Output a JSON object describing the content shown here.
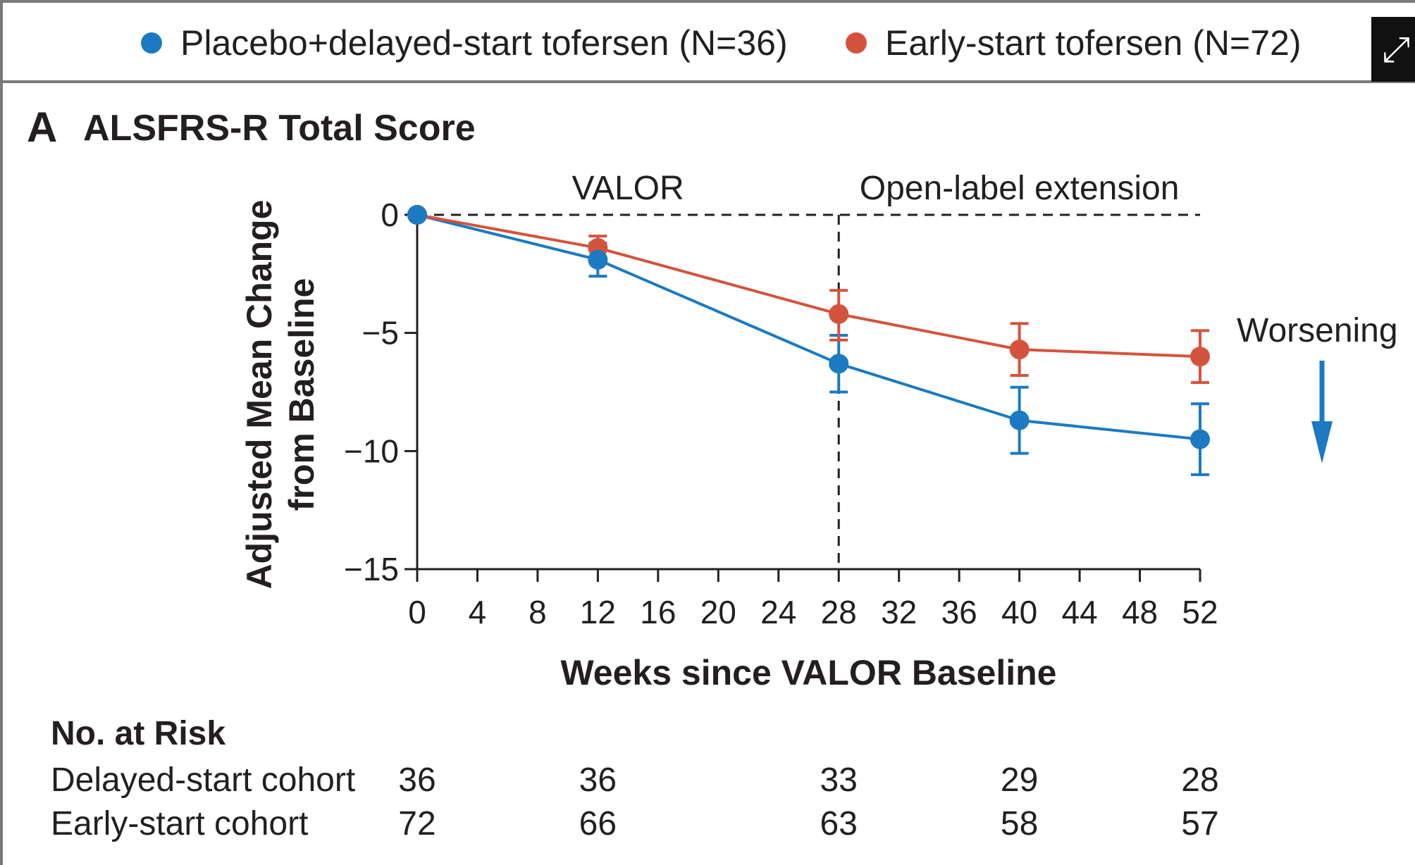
{
  "legend": {
    "placebo_label": "Placebo+delayed-start tofersen (N=36)",
    "early_label": "Early-start tofersen (N=72)"
  },
  "colors": {
    "placebo": "#1b7ac2",
    "early": "#d4533d"
  },
  "expand_icon": "expand-arrows-icon",
  "panel": {
    "letter": "A",
    "title": "ALSFRS-R Total Score"
  },
  "chart_data": {
    "type": "line",
    "title": "ALSFRS-R Total Score",
    "xlabel": "Weeks since VALOR Baseline",
    "ylabel": "Adjusted Mean Change from Baseline",
    "ylabel_lines": [
      "Adjusted Mean Change",
      "from Baseline"
    ],
    "xlim": [
      0,
      52
    ],
    "ylim": [
      -15,
      0
    ],
    "x_ticks": [
      0,
      4,
      8,
      12,
      16,
      20,
      24,
      28,
      32,
      36,
      40,
      44,
      48,
      52
    ],
    "y_ticks": [
      0,
      -5,
      -10,
      -15
    ],
    "y_tick_labels": [
      "0",
      "−5",
      "−10",
      "−15"
    ],
    "grid": false,
    "legend_position": "top",
    "reference_line_y": 0,
    "phase_divider_x": 28,
    "phase_labels": [
      {
        "text": "VALOR",
        "x": 14
      },
      {
        "text": "Open-label extension",
        "x": 40
      }
    ],
    "annotation": {
      "text": "Worsening",
      "direction": "down"
    },
    "series": [
      {
        "name": "Placebo+delayed-start tofersen (N=36)",
        "color": "#1b7ac2",
        "x": [
          0,
          12,
          28,
          40,
          52
        ],
        "y": [
          0,
          -1.9,
          -6.3,
          -8.7,
          -9.5
        ],
        "err_low": [
          0,
          -2.6,
          -7.5,
          -10.1,
          -11.0
        ],
        "err_high": [
          0,
          -1.2,
          -5.1,
          -7.3,
          -8.0
        ]
      },
      {
        "name": "Early-start tofersen (N=72)",
        "color": "#d4533d",
        "x": [
          0,
          12,
          28,
          40,
          52
        ],
        "y": [
          0,
          -1.4,
          -4.2,
          -5.7,
          -6.0
        ],
        "err_low": [
          0,
          -2.0,
          -5.3,
          -6.8,
          -7.1
        ],
        "err_high": [
          0,
          -0.9,
          -3.2,
          -4.6,
          -4.9
        ]
      }
    ]
  },
  "risk_table": {
    "title": "No. at Risk",
    "weeks": [
      0,
      12,
      28,
      40,
      52
    ],
    "rows": [
      {
        "label": "Delayed-start cohort",
        "values": [
          "36",
          "36",
          "33",
          "29",
          "28"
        ]
      },
      {
        "label": "Early-start cohort",
        "values": [
          "72",
          "66",
          "63",
          "58",
          "57"
        ]
      }
    ]
  }
}
